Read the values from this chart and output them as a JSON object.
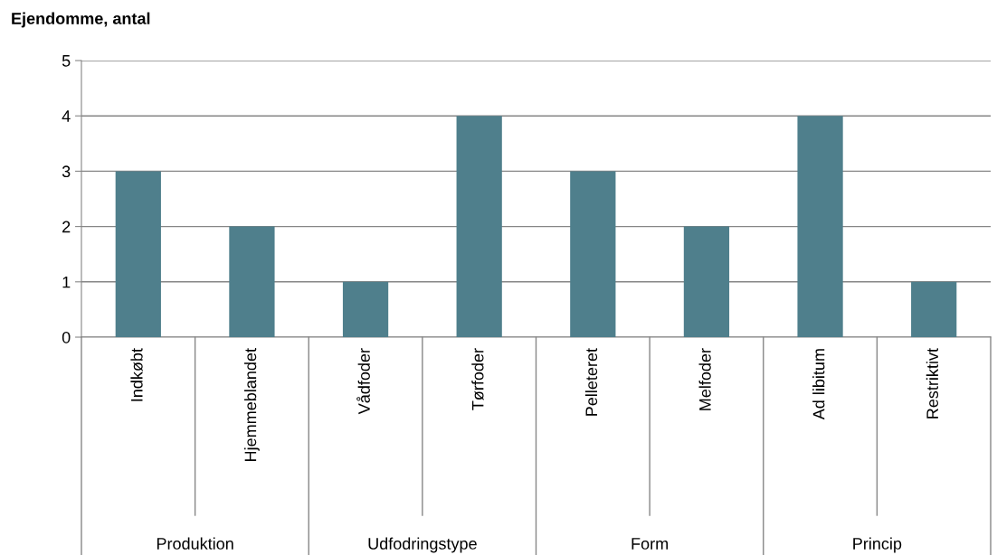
{
  "chart_data": {
    "type": "bar",
    "title": "Ejendomme, antal",
    "categories": [
      "Indkøbt",
      "Hjemmeblandet",
      "Vådfoder",
      "Tørfoder",
      "Pelleteret",
      "Melfoder",
      "Ad libitum",
      "Restriktivt"
    ],
    "values": [
      3,
      2,
      1,
      4,
      3,
      2,
      4,
      1
    ],
    "color": "#4f7f8c",
    "ylim": [
      0,
      5
    ],
    "yticks": [
      0,
      1,
      2,
      3,
      4,
      5
    ],
    "grid": "y",
    "annotations": [
      "Produktion",
      "Udfodringstype",
      "Form",
      "Princip"
    ]
  }
}
